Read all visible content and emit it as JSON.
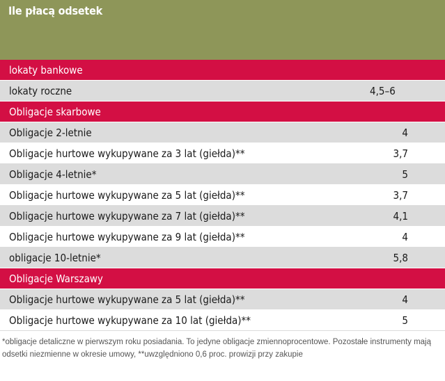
{
  "title": "Ile płacą odsetek",
  "sections": [
    {
      "name": "lokaty bankowe",
      "rows": [
        {
          "label": "lokaty roczne",
          "value": "4,5–6"
        }
      ]
    },
    {
      "name": "Obligacje skarbowe",
      "rows": [
        {
          "label": "Obligacje 2-letnie",
          "value": "4"
        },
        {
          "label": "Obligacje hurtowe wykupywane za 3 lat (giełda)**",
          "value": "3,7"
        },
        {
          "label": "Obligacje 4-letnie*",
          "value": "5"
        },
        {
          "label": "Obligacje hurtowe wykupywane za 5 lat (giełda)**",
          "value": "3,7"
        },
        {
          "label": "Obligacje hurtowe wykupywane za 7 lat (giełda)**",
          "value": "4,1"
        },
        {
          "label": "Obligacje hurtowe wykupywane za 9 lat (giełda)**",
          "value": "4"
        },
        {
          "label": "obligacje 10-letnie*",
          "value": "5,8"
        }
      ]
    },
    {
      "name": "Obligacje Warszawy",
      "rows": [
        {
          "label": "Obligacje hurtowe wykupywane za 5 lat (giełda)**",
          "value": "4"
        },
        {
          "label": "Obligacje hurtowe wykupywane za 10 lat (giełda)**",
          "value": "5"
        }
      ]
    }
  ],
  "footnote": "*obligacje detaliczne w pierwszym roku posiadania. To jedyne obligacje zmiennoprocentowe. Pozostałe instrumenty mają odsetki niezmienne w okresie umowy, **uwzględniono 0,6 proc. prowizji przy zakupie",
  "colors": {
    "header_bg": "#8e9659",
    "section_bg": "#d30f44",
    "row_gray": "#dcdcdc",
    "row_white": "#ffffff"
  }
}
